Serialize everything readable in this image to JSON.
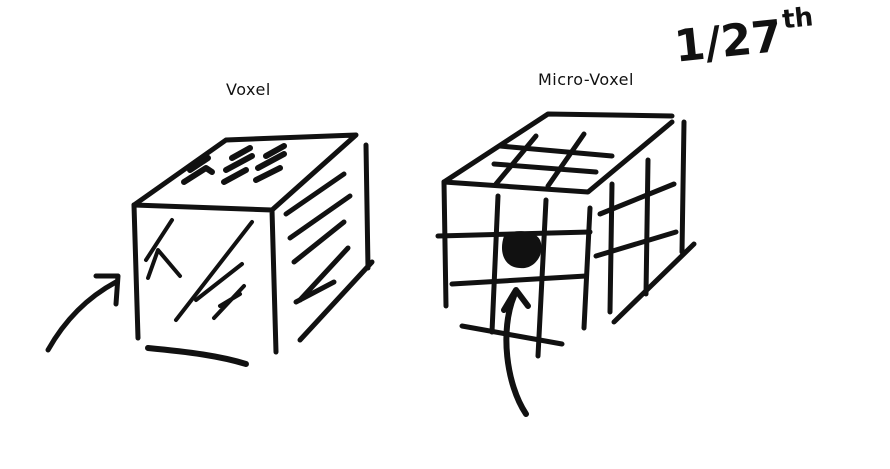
{
  "labels": {
    "voxel": "Voxel",
    "micro_voxel": "Micro-Voxel"
  },
  "fraction": {
    "value": "1/27",
    "suffix": "th"
  },
  "colors": {
    "ink": "#111111",
    "background": "#ffffff"
  }
}
